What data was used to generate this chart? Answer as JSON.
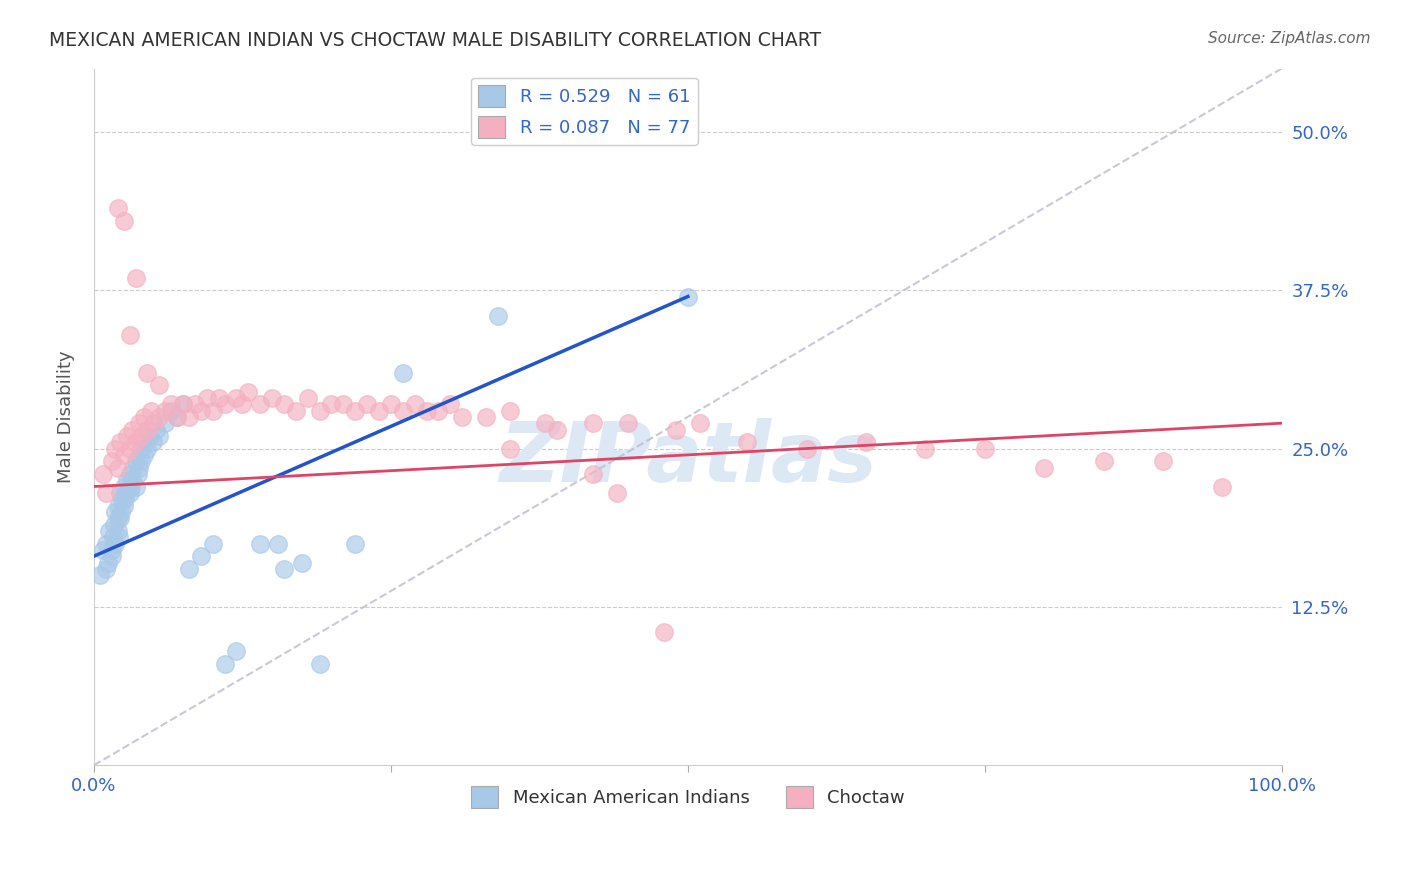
{
  "title": "MEXICAN AMERICAN INDIAN VS CHOCTAW MALE DISABILITY CORRELATION CHART",
  "source": "Source: ZipAtlas.com",
  "ylabel": "Male Disability",
  "xlim": [
    0.0,
    1.0
  ],
  "ylim": [
    0.0,
    0.55
  ],
  "yticks": [
    0.125,
    0.25,
    0.375,
    0.5
  ],
  "ytick_labels": [
    "12.5%",
    "25.0%",
    "37.5%",
    "50.0%"
  ],
  "xtick_positions": [
    0.0,
    0.25,
    0.5,
    0.75,
    1.0
  ],
  "xtick_labels": [
    "0.0%",
    "",
    "",
    "",
    "100.0%"
  ],
  "background_color": "#ffffff",
  "series1_color": "#a8c8e8",
  "series2_color": "#f4b0c0",
  "series1_R": 0.529,
  "series1_N": 61,
  "series2_R": 0.087,
  "series2_N": 77,
  "series1_label": "Mexican American Indians",
  "series2_label": "Choctaw",
  "trend1_color": "#2255cc",
  "trend2_color": "#dd4466",
  "diagonal_color": "#bbbbcc",
  "series1_x": [
    0.005,
    0.008,
    0.01,
    0.01,
    0.012,
    0.013,
    0.015,
    0.015,
    0.016,
    0.017,
    0.018,
    0.018,
    0.02,
    0.02,
    0.02,
    0.021,
    0.022,
    0.022,
    0.023,
    0.024,
    0.025,
    0.025,
    0.026,
    0.027,
    0.028,
    0.03,
    0.03,
    0.031,
    0.032,
    0.033,
    0.035,
    0.035,
    0.037,
    0.038,
    0.04,
    0.04,
    0.042,
    0.043,
    0.045,
    0.047,
    0.05,
    0.052,
    0.055,
    0.06,
    0.065,
    0.07,
    0.075,
    0.08,
    0.09,
    0.1,
    0.11,
    0.12,
    0.14,
    0.155,
    0.16,
    0.175,
    0.19,
    0.22,
    0.26,
    0.34,
    0.5
  ],
  "series1_y": [
    0.15,
    0.17,
    0.155,
    0.175,
    0.16,
    0.185,
    0.17,
    0.165,
    0.18,
    0.19,
    0.175,
    0.2,
    0.185,
    0.195,
    0.205,
    0.18,
    0.195,
    0.215,
    0.2,
    0.21,
    0.205,
    0.22,
    0.21,
    0.215,
    0.225,
    0.215,
    0.23,
    0.22,
    0.225,
    0.235,
    0.22,
    0.24,
    0.23,
    0.235,
    0.24,
    0.25,
    0.245,
    0.255,
    0.25,
    0.26,
    0.255,
    0.265,
    0.26,
    0.27,
    0.28,
    0.275,
    0.285,
    0.155,
    0.165,
    0.175,
    0.08,
    0.09,
    0.175,
    0.175,
    0.155,
    0.16,
    0.08,
    0.175,
    0.31,
    0.355,
    0.37
  ],
  "series2_x": [
    0.008,
    0.01,
    0.015,
    0.018,
    0.02,
    0.022,
    0.025,
    0.028,
    0.03,
    0.032,
    0.035,
    0.038,
    0.04,
    0.042,
    0.045,
    0.048,
    0.05,
    0.055,
    0.06,
    0.065,
    0.07,
    0.075,
    0.08,
    0.085,
    0.09,
    0.095,
    0.1,
    0.105,
    0.11,
    0.12,
    0.125,
    0.13,
    0.14,
    0.15,
    0.16,
    0.17,
    0.18,
    0.19,
    0.2,
    0.21,
    0.22,
    0.23,
    0.24,
    0.25,
    0.26,
    0.27,
    0.28,
    0.29,
    0.3,
    0.31,
    0.33,
    0.35,
    0.38,
    0.35,
    0.39,
    0.42,
    0.45,
    0.49,
    0.51,
    0.55,
    0.6,
    0.65,
    0.7,
    0.75,
    0.8,
    0.85,
    0.9,
    0.95,
    0.42,
    0.44,
    0.02,
    0.025,
    0.03,
    0.035,
    0.045,
    0.055,
    0.48
  ],
  "series2_y": [
    0.23,
    0.215,
    0.24,
    0.25,
    0.235,
    0.255,
    0.245,
    0.26,
    0.25,
    0.265,
    0.255,
    0.27,
    0.26,
    0.275,
    0.265,
    0.28,
    0.27,
    0.275,
    0.28,
    0.285,
    0.275,
    0.285,
    0.275,
    0.285,
    0.28,
    0.29,
    0.28,
    0.29,
    0.285,
    0.29,
    0.285,
    0.295,
    0.285,
    0.29,
    0.285,
    0.28,
    0.29,
    0.28,
    0.285,
    0.285,
    0.28,
    0.285,
    0.28,
    0.285,
    0.28,
    0.285,
    0.28,
    0.28,
    0.285,
    0.275,
    0.275,
    0.28,
    0.27,
    0.25,
    0.265,
    0.27,
    0.27,
    0.265,
    0.27,
    0.255,
    0.25,
    0.255,
    0.25,
    0.25,
    0.235,
    0.24,
    0.24,
    0.22,
    0.23,
    0.215,
    0.44,
    0.43,
    0.34,
    0.385,
    0.31,
    0.3,
    0.105
  ],
  "trend1_x0": 0.0,
  "trend1_y0": 0.165,
  "trend1_x1": 0.5,
  "trend1_y1": 0.37,
  "trend2_x0": 0.0,
  "trend2_y0": 0.22,
  "trend2_x1": 1.0,
  "trend2_y1": 0.27
}
